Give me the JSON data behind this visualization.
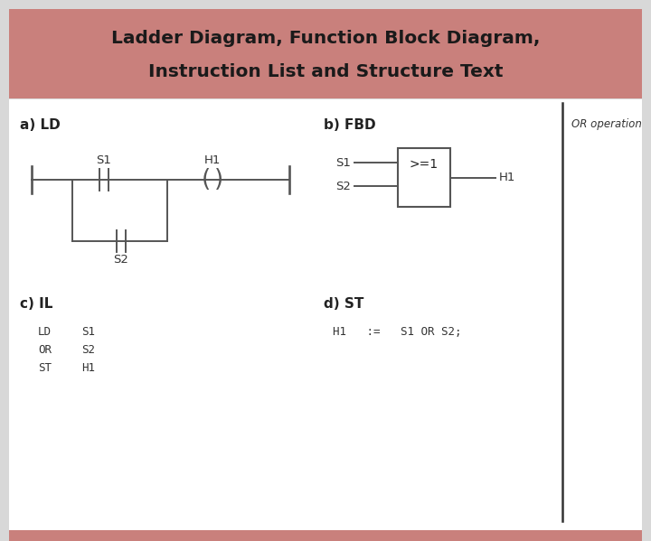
{
  "title_line1": "Ladder Diagram, Function Block Diagram,",
  "title_line2": "Instruction List and Structure Text",
  "title_bg": "#c9807c",
  "title_text_color": "#1a1a1a",
  "main_bg": "#d8d8d8",
  "content_bg": "#ffffff",
  "section_a_label": "a) LD",
  "section_b_label": "b) FBD",
  "section_c_label": "c) IL",
  "section_d_label": "d) ST",
  "or_operation_label": "OR operation",
  "il_cmds": [
    "LD",
    "OR",
    "ST"
  ],
  "il_args": [
    "S1",
    "S2",
    "H1"
  ],
  "st_line": "H1   :=   S1 OR S2;",
  "fbd_gate_label": ">=1",
  "line_color": "#555555"
}
